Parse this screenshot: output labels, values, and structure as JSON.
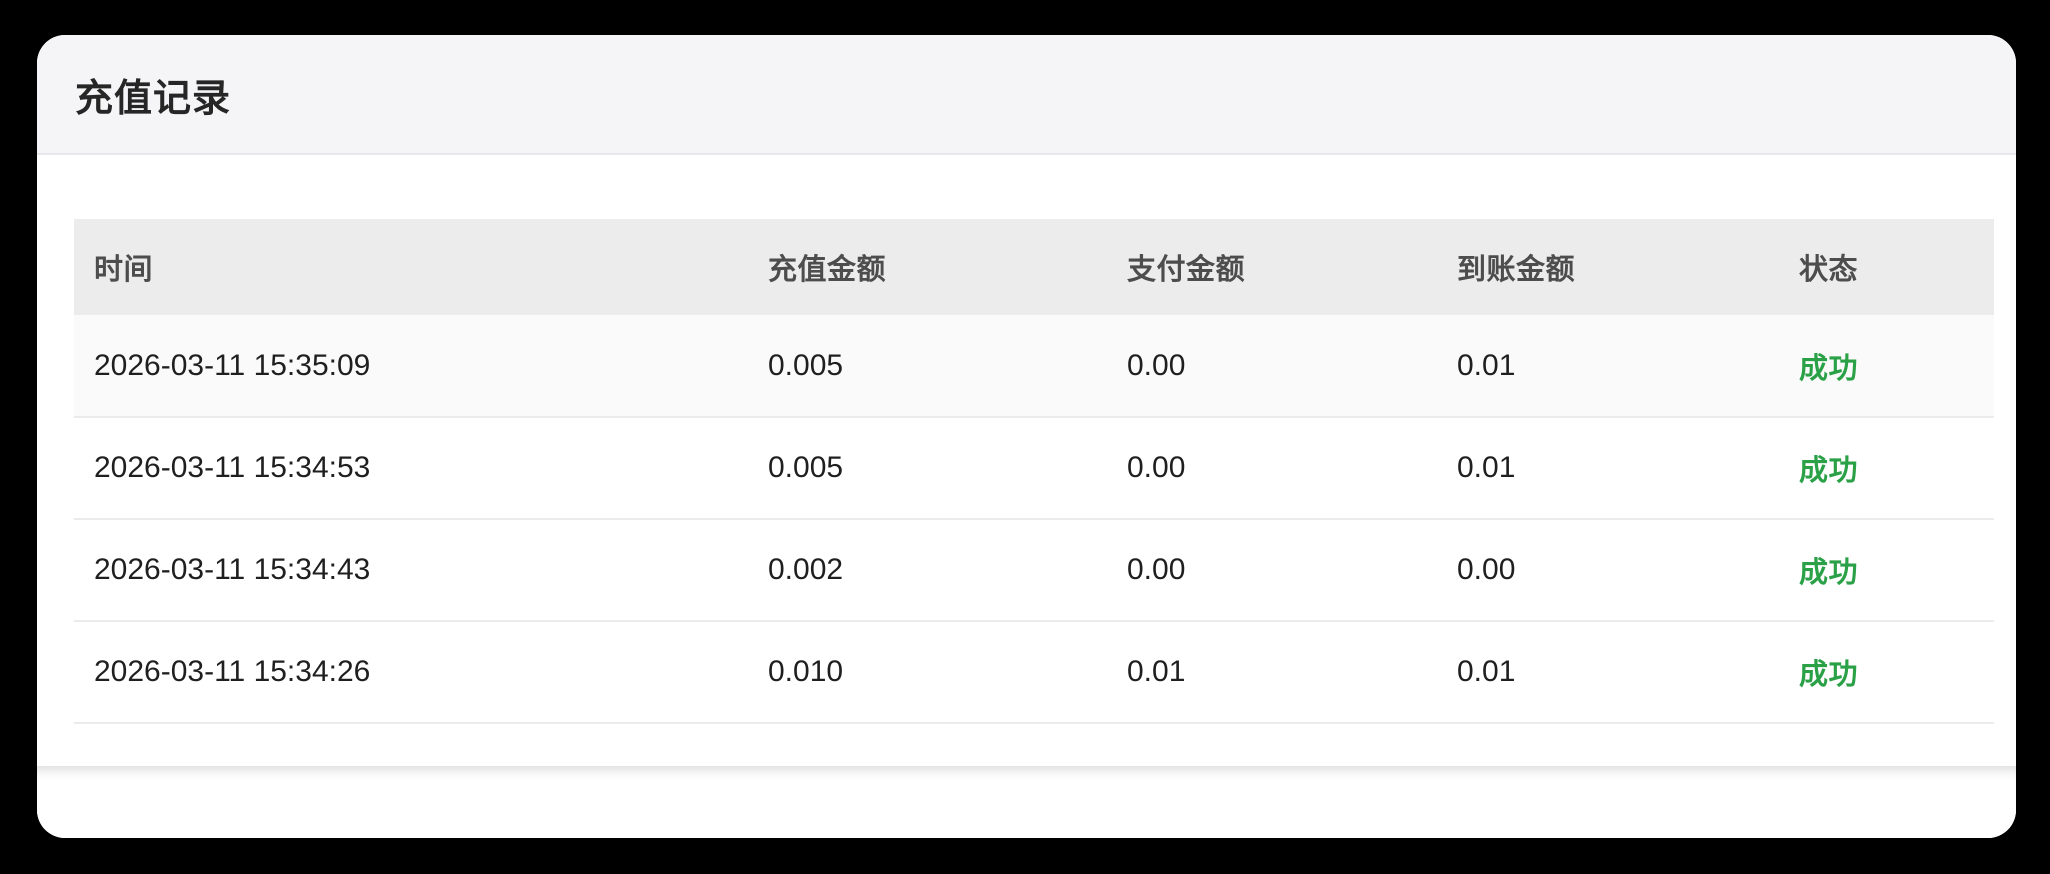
{
  "page": {
    "background_color": "#000000",
    "accent_green": "#2aa147"
  },
  "card": {
    "title": "充值记录"
  },
  "table": {
    "columns": [
      {
        "key": "time",
        "label": "时间"
      },
      {
        "key": "amount",
        "label": "充值金额"
      },
      {
        "key": "paid",
        "label": "支付金额"
      },
      {
        "key": "received",
        "label": "到账金额"
      },
      {
        "key": "status",
        "label": "状态"
      }
    ],
    "rows": [
      {
        "time": "2026-03-11 15:35:09",
        "amount": "0.005",
        "paid": "0.00",
        "received": "0.01",
        "status": "成功"
      },
      {
        "time": "2026-03-11 15:34:53",
        "amount": "0.005",
        "paid": "0.00",
        "received": "0.01",
        "status": "成功"
      },
      {
        "time": "2026-03-11 15:34:43",
        "amount": "0.002",
        "paid": "0.00",
        "received": "0.00",
        "status": "成功"
      },
      {
        "time": "2026-03-11 15:34:26",
        "amount": "0.010",
        "paid": "0.01",
        "received": "0.01",
        "status": "成功"
      }
    ]
  }
}
